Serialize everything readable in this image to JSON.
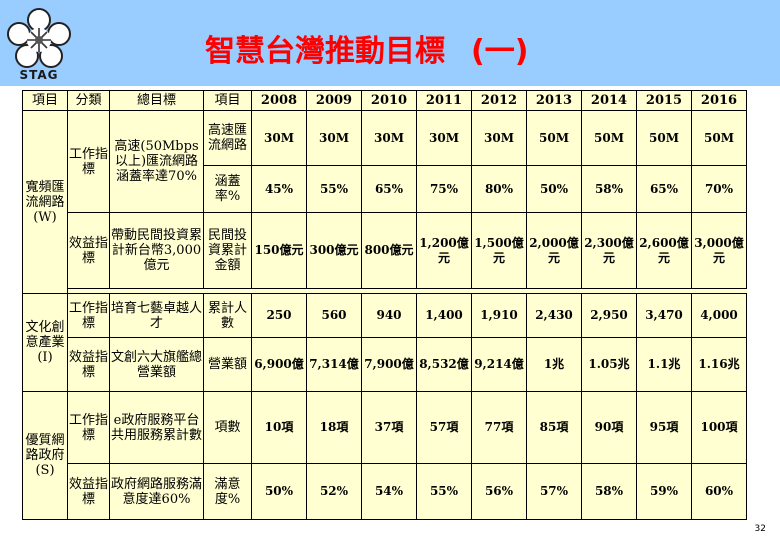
{
  "logo": {
    "text": "STAG",
    "icon": "plum-blossom-emblem-icon"
  },
  "title": {
    "main": "智慧台灣推動目標",
    "suffix": "(一)"
  },
  "table": {
    "headers": [
      "項目",
      "分類",
      "總目標",
      "項目"
    ],
    "years": [
      "2008",
      "2009",
      "2010",
      "2011",
      "2012",
      "2013",
      "2014",
      "2015",
      "2016"
    ],
    "w": {
      "category": "寬頻匯流網路(W)",
      "work": {
        "cls": "工作指標",
        "goal": "高速(50Mbps以上)匯流網路涵蓋率達70%",
        "rows": [
          {
            "item": "高速匯流網路",
            "values": [
              "30M",
              "30M",
              "30M",
              "30M",
              "30M",
              "50M",
              "50M",
              "50M",
              "50M"
            ]
          },
          {
            "item": "涵蓋率%",
            "values": [
              "45%",
              "55%",
              "65%",
              "75%",
              "80%",
              "50%",
              "58%",
              "65%",
              "70%"
            ]
          }
        ]
      },
      "benefit": {
        "cls": "效益指標",
        "goal": "帶動民間投資累計新台幣3,000億元",
        "rows": [
          {
            "item": "民間投資累計金額",
            "values": [
              "150億元",
              "300億元",
              "800億元",
              "1,200億元",
              "1,500億元",
              "2,000億元",
              "2,300億元",
              "2,600億元",
              "3,000億元"
            ]
          }
        ]
      }
    },
    "i": {
      "category": "文化創意產業(I)",
      "work": {
        "cls": "工作指標",
        "goal": "培育七藝卓越人才",
        "rows": [
          {
            "item": "累計人數",
            "values": [
              "250",
              "560",
              "940",
              "1,400",
              "1,910",
              "2,430",
              "2,950",
              "3,470",
              "4,000"
            ]
          }
        ]
      },
      "benefit": {
        "cls": "效益指標",
        "goal": "文創六大旗艦總營業額",
        "rows": [
          {
            "item": "營業額",
            "values": [
              "6,900億",
              "7,314億",
              "7,900億",
              "8,532億",
              "9,214億",
              "1兆",
              "1.05兆",
              "1.1兆",
              "1.16兆"
            ]
          }
        ]
      }
    },
    "s": {
      "category": "優質網路政府(S)",
      "work": {
        "cls": "工作指標",
        "goal": "e政府服務平台共用服務累計數",
        "rows": [
          {
            "item": "項數",
            "values": [
              "10項",
              "18項",
              "37項",
              "57項",
              "77項",
              "85項",
              "90項",
              "95項",
              "100項"
            ]
          }
        ]
      },
      "benefit": {
        "cls": "效益指標",
        "goal": "政府網路服務滿意度達60%",
        "rows": [
          {
            "item": "滿意度%",
            "values": [
              "50%",
              "52%",
              "54%",
              "55%",
              "56%",
              "57%",
              "58%",
              "59%",
              "60%"
            ]
          }
        ]
      }
    }
  },
  "page_number": "32"
}
